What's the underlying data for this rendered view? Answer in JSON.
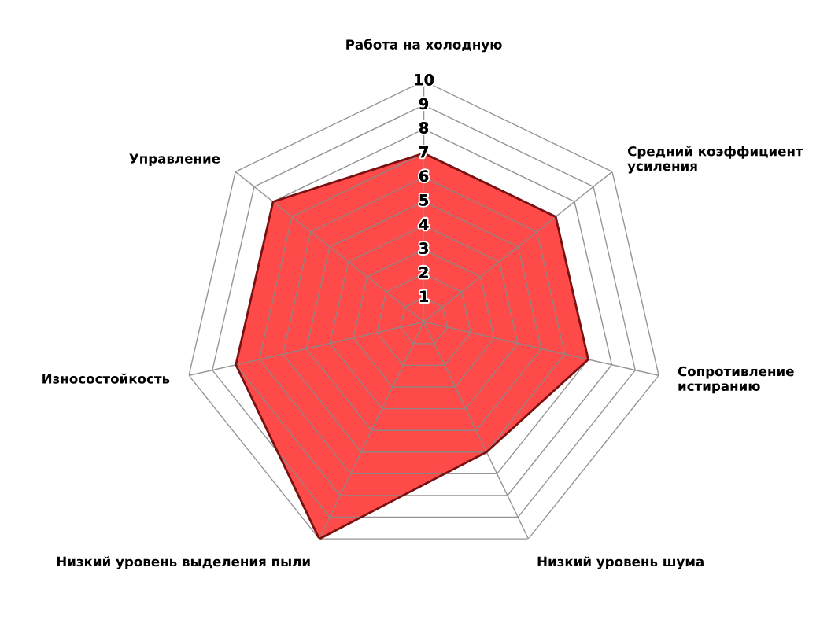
{
  "chart_data": {
    "type": "radar",
    "categories": [
      "Работа на холодную",
      "Средний коэффициент\nусиления",
      "Сопротивление\nистиранию",
      "Низкий уровень шума",
      "Низкий уровень выделения пыли",
      "Износостойкость",
      "Управление"
    ],
    "series": [
      {
        "color": "#ff2a2a",
        "values": [
          7,
          7,
          7,
          6,
          10,
          8,
          8
        ]
      }
    ],
    "ylim": [
      0,
      10
    ],
    "yticks": [
      1,
      2,
      3,
      4,
      5,
      6,
      7,
      8,
      9,
      10
    ],
    "grid": true
  }
}
